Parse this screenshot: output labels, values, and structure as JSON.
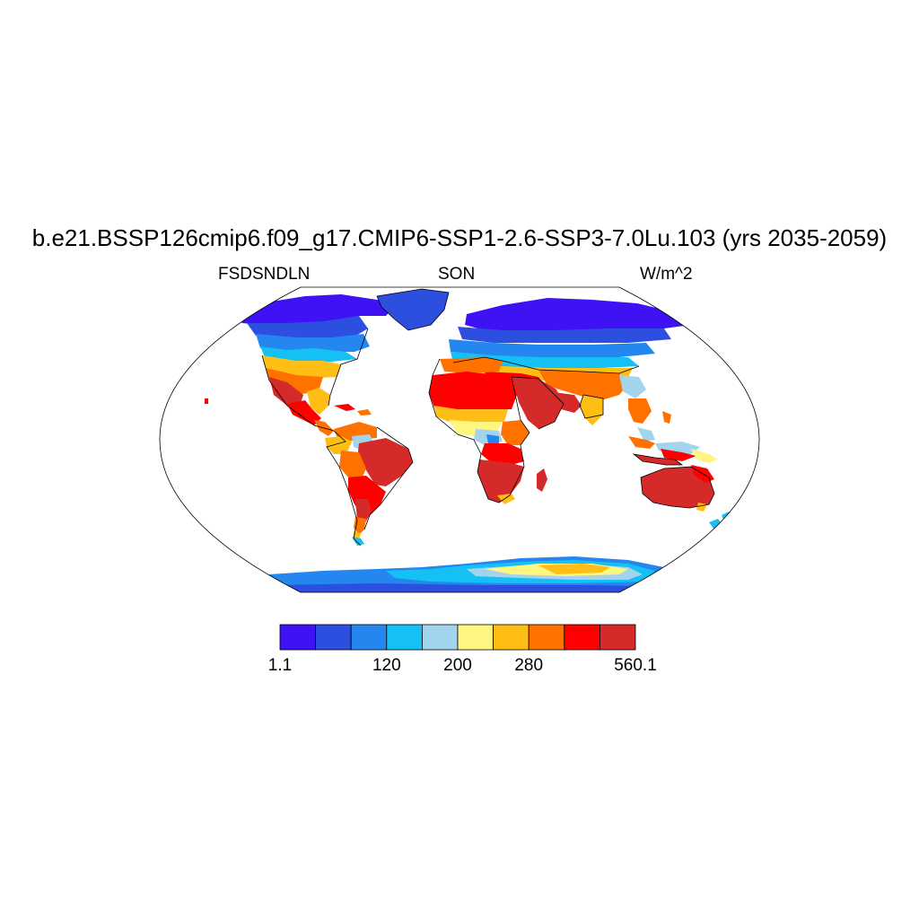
{
  "title": "b.e21.BSSP126cmip6.f09_g17.CMIP6-SSP1-2.6-SSP3-7.0Lu.103 (yrs 2035-2059)",
  "variable": "FSDSNDLN",
  "season": "SON",
  "units": "W/m^2",
  "colorbar": {
    "colors": [
      "#3f12f5",
      "#2d4fe0",
      "#2487f0",
      "#15c0f5",
      "#a3d4ee",
      "#fff581",
      "#ffbe15",
      "#ff7200",
      "#ff0000",
      "#d42a2a"
    ],
    "labels": [
      {
        "text": "1.1",
        "index": 0
      },
      {
        "text": "120",
        "index": 3
      },
      {
        "text": "200",
        "index": 5
      },
      {
        "text": "280",
        "index": 7
      },
      {
        "text": "560.1",
        "index": 10
      }
    ]
  }
}
